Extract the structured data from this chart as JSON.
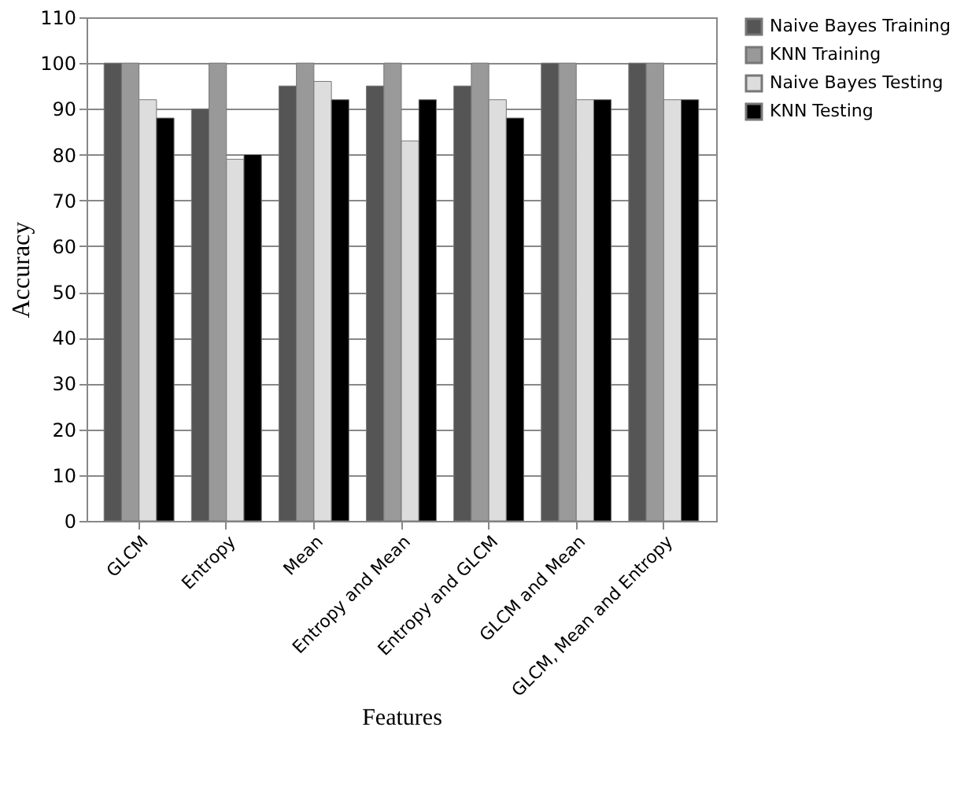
{
  "chart_data": {
    "type": "bar",
    "xlabel": "Features",
    "ylabel": "Accuracy",
    "categories": [
      "GLCM",
      "Entropy",
      "Mean",
      "Entropy and Mean",
      "Entropy and GLCM",
      "GLCM and Mean",
      "GLCM, Mean and Entropy"
    ],
    "series": [
      {
        "name": "Naive Bayes Training",
        "color": "#555555",
        "values": [
          100,
          90,
          95,
          95,
          95,
          100,
          100
        ]
      },
      {
        "name": "KNN Training",
        "color": "#999999",
        "values": [
          100,
          100,
          100,
          100,
          100,
          100,
          100
        ]
      },
      {
        "name": "Naive Bayes Testing",
        "color": "#dddddd",
        "values": [
          92,
          79,
          96,
          83,
          92,
          92,
          92
        ]
      },
      {
        "name": "KNN Testing",
        "color": "#000000",
        "values": [
          88,
          80,
          92,
          92,
          88,
          92,
          92
        ]
      }
    ],
    "ylim": [
      0,
      110
    ],
    "yticks": [
      0,
      10,
      20,
      30,
      40,
      50,
      60,
      70,
      80,
      90,
      100,
      110
    ],
    "grid": "y",
    "legend": "right"
  }
}
